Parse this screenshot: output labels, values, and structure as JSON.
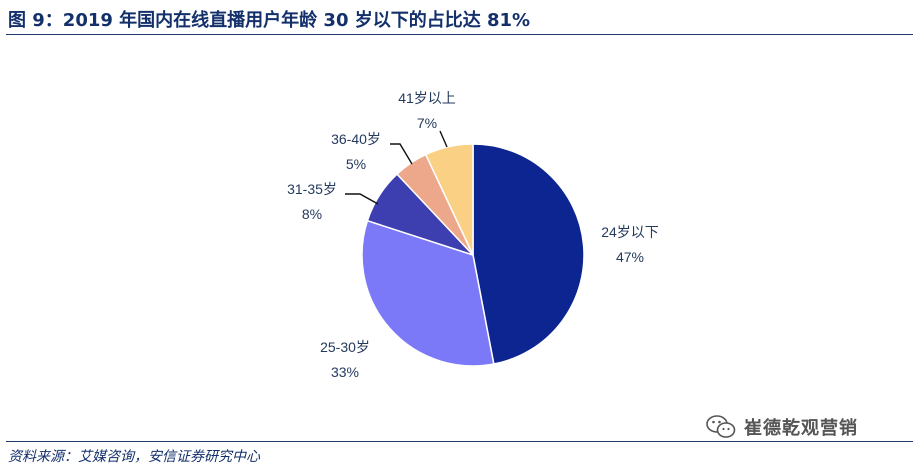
{
  "header": {
    "title": "图 9：2019 年国内在线直播用户年龄 30 岁以下的占比达 81%"
  },
  "footer": {
    "source": "资料来源：艾媒咨询，安信证券研究中心"
  },
  "watermark": {
    "text": "崔德乾观营销",
    "icon": "wechat-icon"
  },
  "chart_data": {
    "type": "pie",
    "title": "图 9：2019 年国内在线直播用户年龄 30 岁以下的占比达 81%",
    "start_angle": "12 o'clock",
    "direction": "clockwise",
    "slices": [
      {
        "label": "24岁以下",
        "value": 47,
        "pct_label": "47%",
        "color": "#0d2591"
      },
      {
        "label": "25-30岁",
        "value": 33,
        "pct_label": "33%",
        "color": "#7b79f7"
      },
      {
        "label": "31-35岁",
        "value": 8,
        "pct_label": "8%",
        "color": "#3d3eb0"
      },
      {
        "label": "36-40岁",
        "value": 5,
        "pct_label": "5%",
        "color": "#eda88b"
      },
      {
        "label": "41岁以上",
        "value": 7,
        "pct_label": "7%",
        "color": "#f9d084"
      }
    ]
  }
}
